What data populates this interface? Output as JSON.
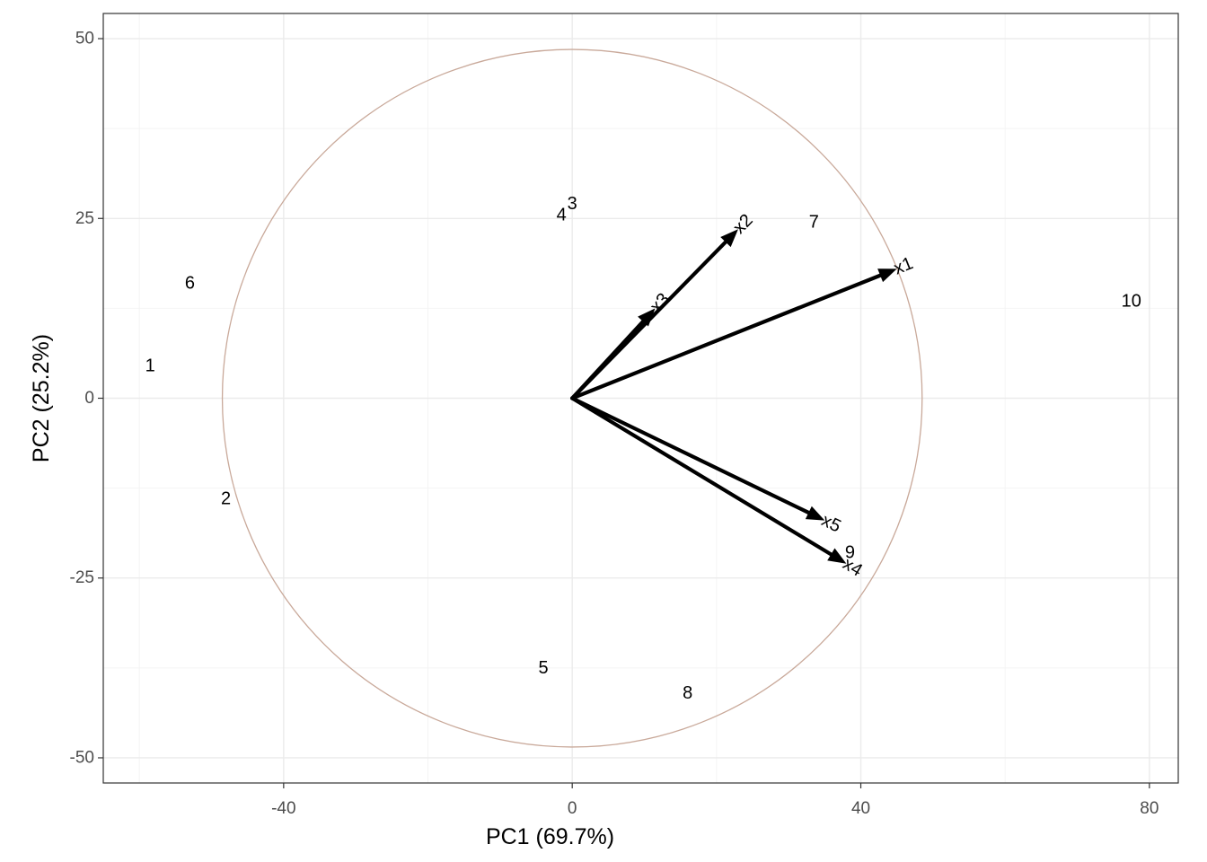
{
  "chart_data": {
    "type": "scatter",
    "title": "",
    "xlabel": "PC1 (69.7%)",
    "ylabel": "PC2 (25.2%)",
    "xlim": [
      -65,
      84
    ],
    "ylim": [
      -53.5,
      53.5
    ],
    "x_ticks": [
      -40,
      0,
      40,
      80
    ],
    "x_tick_labels": [
      "-40",
      "0",
      "40",
      "80"
    ],
    "y_ticks": [
      -50,
      -25,
      0,
      25,
      50
    ],
    "y_tick_labels": [
      "-50",
      "-25",
      "0",
      "25",
      "50"
    ],
    "grid": true,
    "colors": {
      "circle": "#c9a99a",
      "grid_major": "#ebebeb",
      "grid_minor": "#f4f4f4",
      "panel_border": "#333333",
      "arrow": "#000000",
      "tick_text": "#4d4d4d"
    },
    "points": [
      {
        "label": "1",
        "x": -58.5,
        "y": 4.5
      },
      {
        "label": "2",
        "x": -48,
        "y": -14
      },
      {
        "label": "3",
        "x": 0,
        "y": 27
      },
      {
        "label": "4",
        "x": -1.5,
        "y": 25.5
      },
      {
        "label": "5",
        "x": -4,
        "y": -37.5
      },
      {
        "label": "6",
        "x": -53,
        "y": 16
      },
      {
        "label": "7",
        "x": 33.5,
        "y": 24.5
      },
      {
        "label": "8",
        "x": 16,
        "y": -41
      },
      {
        "label": "9",
        "x": 38.5,
        "y": -21.5
      },
      {
        "label": "10",
        "x": 77.5,
        "y": 13.5
      }
    ],
    "loadings": [
      {
        "name": "x1",
        "x": 45,
        "y": 18
      },
      {
        "name": "x2",
        "x": 23,
        "y": 23.5
      },
      {
        "name": "x3",
        "x": 11.5,
        "y": 12.5
      },
      {
        "name": "x4",
        "x": 38,
        "y": -23
      },
      {
        "name": "x5",
        "x": 35,
        "y": -17
      }
    ],
    "circle": {
      "center_x": 0,
      "center_y": 0,
      "radius": 48.5
    }
  }
}
